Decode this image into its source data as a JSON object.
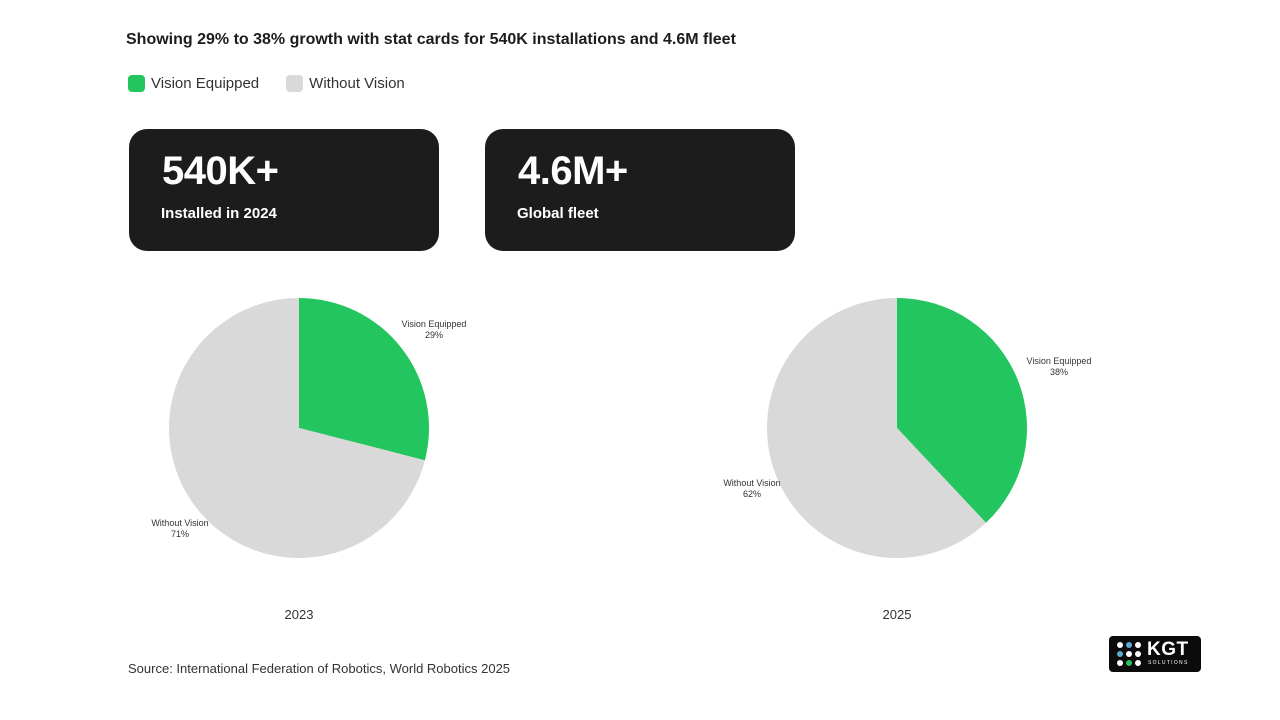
{
  "title": "Showing 29% to 38% growth with stat cards for 540K installations and 4.6M fleet",
  "legend": {
    "items": [
      {
        "label": "Vision Equipped",
        "color": "#22c55e"
      },
      {
        "label": "Without Vision",
        "color": "#d9d9d9"
      }
    ]
  },
  "cards": [
    {
      "value": "540K+",
      "label": "Installed in 2024"
    },
    {
      "value": "4.6M+",
      "label": "Global fleet"
    }
  ],
  "chart_data": [
    {
      "type": "pie",
      "title": "2023",
      "slices": [
        {
          "label": "Vision Equipped",
          "value": 29,
          "display": "29%",
          "color": "#22c55e"
        },
        {
          "label": "Without Vision",
          "value": 71,
          "display": "71%",
          "color": "#d9d9d9"
        }
      ]
    },
    {
      "type": "pie",
      "title": "2025",
      "slices": [
        {
          "label": "Vision Equipped",
          "value": 38,
          "display": "38%",
          "color": "#22c55e"
        },
        {
          "label": "Without Vision",
          "value": 62,
          "display": "62%",
          "color": "#d9d9d9"
        }
      ]
    }
  ],
  "source": "Source: International Federation of Robotics, World Robotics 2025",
  "logo": {
    "text": "KGT",
    "subtext": "SOLUTIONS"
  }
}
